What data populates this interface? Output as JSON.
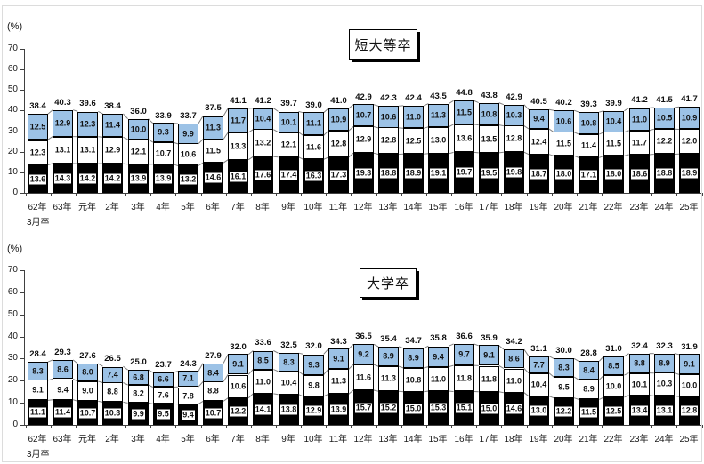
{
  "chart_data": [
    {
      "type": "bar",
      "stacked": true,
      "title": "短大等卒",
      "unit_label": "(%)",
      "x_sub_label": "3月卒",
      "legend": "none",
      "grid": false,
      "ylim": [
        0,
        70
      ],
      "yticks": [
        0,
        10,
        20,
        30,
        40,
        50,
        60,
        70
      ],
      "categories": [
        "62年",
        "63年",
        "元年",
        "2年",
        "3年",
        "4年",
        "5年",
        "6年",
        "7年",
        "8年",
        "9年",
        "10年",
        "11年",
        "12年",
        "13年",
        "14年",
        "15年",
        "16年",
        "17年",
        "18年",
        "19年",
        "20年",
        "21年",
        "22年",
        "23年",
        "24年",
        "25年"
      ],
      "series": [
        {
          "name": "series-1-black",
          "color": "#000000",
          "values": [
            13.6,
            14.3,
            14.2,
            14.2,
            13.9,
            13.9,
            13.2,
            14.6,
            16.1,
            17.6,
            17.4,
            16.3,
            17.3,
            19.3,
            18.8,
            18.9,
            19.1,
            19.7,
            19.5,
            19.8,
            18.7,
            18.0,
            17.1,
            18.0,
            18.6,
            18.8,
            18.9
          ]
        },
        {
          "name": "series-2-white",
          "color": "#FFFFFF",
          "values": [
            12.3,
            13.1,
            13.1,
            12.9,
            12.1,
            10.7,
            10.6,
            11.5,
            13.3,
            13.2,
            12.1,
            11.6,
            12.8,
            12.9,
            12.8,
            12.5,
            13.0,
            13.6,
            13.5,
            12.8,
            12.4,
            11.5,
            11.4,
            11.5,
            11.7,
            12.2,
            12.0
          ]
        },
        {
          "name": "series-3-blue",
          "color": "#9CC2E6",
          "values": [
            12.5,
            12.9,
            12.3,
            11.4,
            10.0,
            9.3,
            9.9,
            11.3,
            11.7,
            10.4,
            10.1,
            11.1,
            10.9,
            10.7,
            10.6,
            11.0,
            11.3,
            11.5,
            10.8,
            10.3,
            9.4,
            10.6,
            10.8,
            10.4,
            11.0,
            10.5,
            10.9
          ]
        }
      ],
      "totals": [
        38.4,
        40.3,
        39.6,
        38.4,
        36.0,
        33.9,
        33.7,
        37.5,
        41.1,
        41.2,
        39.7,
        39.0,
        41.0,
        42.9,
        42.3,
        42.4,
        43.5,
        44.8,
        43.8,
        42.9,
        40.5,
        40.2,
        39.3,
        39.9,
        41.2,
        41.5,
        41.7
      ]
    },
    {
      "type": "bar",
      "stacked": true,
      "title": "大学卒",
      "unit_label": "(%)",
      "x_sub_label": "3月卒",
      "legend": "none",
      "grid": false,
      "ylim": [
        0,
        70
      ],
      "yticks": [
        0,
        10,
        20,
        30,
        40,
        50,
        60,
        70
      ],
      "categories": [
        "62年",
        "63年",
        "元年",
        "2年",
        "3年",
        "4年",
        "5年",
        "6年",
        "7年",
        "8年",
        "9年",
        "10年",
        "11年",
        "12年",
        "13年",
        "14年",
        "15年",
        "16年",
        "17年",
        "18年",
        "19年",
        "20年",
        "21年",
        "22年",
        "23年",
        "24年",
        "25年"
      ],
      "series": [
        {
          "name": "series-1-black",
          "color": "#000000",
          "values": [
            11.1,
            11.4,
            10.7,
            10.3,
            9.9,
            9.5,
            9.4,
            10.7,
            12.2,
            14.1,
            13.8,
            12.9,
            13.9,
            15.7,
            15.2,
            15.0,
            15.3,
            15.1,
            15.0,
            14.6,
            13.0,
            12.2,
            11.5,
            12.5,
            13.4,
            13.1,
            12.8
          ]
        },
        {
          "name": "series-2-white",
          "color": "#FFFFFF",
          "values": [
            9.1,
            9.4,
            9.0,
            8.8,
            8.2,
            7.6,
            7.8,
            8.8,
            10.6,
            11.0,
            10.4,
            9.8,
            11.3,
            11.6,
            11.3,
            10.8,
            11.0,
            11.8,
            11.8,
            11.0,
            10.4,
            9.5,
            8.9,
            10.0,
            10.1,
            10.3,
            10.0
          ]
        },
        {
          "name": "series-3-blue",
          "color": "#9CC2E6",
          "values": [
            8.3,
            8.6,
            8.0,
            7.4,
            6.8,
            6.6,
            7.1,
            8.4,
            9.1,
            8.5,
            8.3,
            9.3,
            9.1,
            9.2,
            8.9,
            8.9,
            9.4,
            9.7,
            9.1,
            8.6,
            7.7,
            8.3,
            8.4,
            8.5,
            8.8,
            8.9,
            9.1
          ]
        }
      ],
      "totals": [
        28.4,
        29.3,
        27.6,
        26.5,
        25.0,
        23.7,
        24.3,
        27.9,
        32.0,
        33.6,
        32.5,
        32.0,
        34.3,
        36.5,
        35.4,
        34.7,
        35.8,
        36.6,
        35.9,
        34.2,
        31.1,
        30.0,
        28.8,
        31.0,
        32.4,
        32.3,
        31.9
      ]
    }
  ],
  "connector_line_color": "#7f7f7f",
  "axis_color": "#404040"
}
